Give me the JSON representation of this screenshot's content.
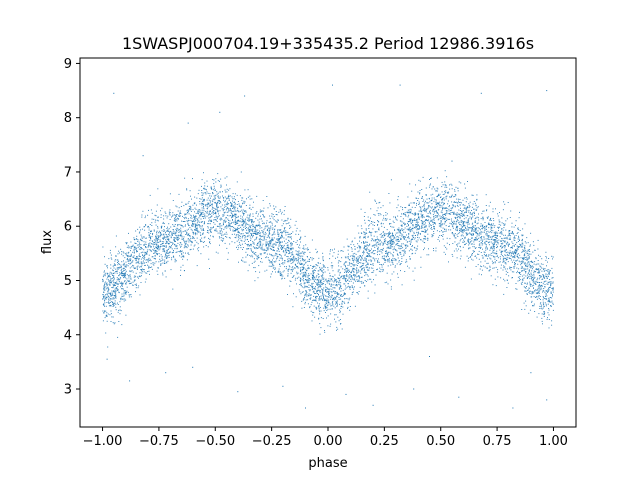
{
  "chart_data": {
    "type": "scatter",
    "title": "1SWASPJ000704.19+335435.2 Period 12986.3916s",
    "xlabel": "phase",
    "ylabel": "flux",
    "xlim": [
      -1.1,
      1.1
    ],
    "ylim": [
      2.3,
      9.1
    ],
    "xticks": [
      -1.0,
      -0.75,
      -0.5,
      -0.25,
      0.0,
      0.25,
      0.5,
      0.75,
      1.0
    ],
    "xtick_labels": [
      "−1.00",
      "−0.75",
      "−0.50",
      "−0.25",
      "0.00",
      "0.25",
      "0.50",
      "0.75",
      "1.00"
    ],
    "yticks": [
      3,
      4,
      5,
      6,
      7,
      8,
      9
    ],
    "ytick_labels": [
      "3",
      "4",
      "5",
      "6",
      "7",
      "8",
      "9"
    ],
    "grid": false,
    "series": [
      {
        "color": "#1f77b4",
        "marker_size": 1,
        "phase_range": [
          -1.0,
          1.0
        ],
        "approx_profile": {
          "phase": [
            -1.0,
            -0.75,
            -0.5,
            -0.25,
            0.0,
            0.25,
            0.5,
            0.75,
            1.0
          ],
          "flux": [
            4.8,
            5.7,
            6.25,
            5.7,
            4.8,
            5.7,
            6.25,
            5.7,
            4.8
          ]
        },
        "outliers": [
          [
            -0.95,
            8.45
          ],
          [
            -0.62,
            7.9
          ],
          [
            -0.48,
            8.1
          ],
          [
            -0.37,
            8.4
          ],
          [
            0.02,
            8.6
          ],
          [
            0.32,
            8.6
          ],
          [
            0.68,
            8.45
          ],
          [
            0.97,
            8.5
          ],
          [
            -0.82,
            7.3
          ],
          [
            0.55,
            7.2
          ],
          [
            -0.98,
            3.55
          ],
          [
            -0.88,
            3.15
          ],
          [
            -0.72,
            3.3
          ],
          [
            -0.4,
            2.95
          ],
          [
            -0.2,
            3.05
          ],
          [
            0.08,
            2.9
          ],
          [
            0.2,
            2.7
          ],
          [
            0.38,
            3.0
          ],
          [
            0.58,
            2.85
          ],
          [
            0.82,
            2.65
          ],
          [
            0.9,
            3.3
          ],
          [
            -0.6,
            3.4
          ],
          [
            0.45,
            3.6
          ],
          [
            -0.1,
            2.65
          ],
          [
            0.97,
            2.8
          ]
        ]
      }
    ]
  }
}
